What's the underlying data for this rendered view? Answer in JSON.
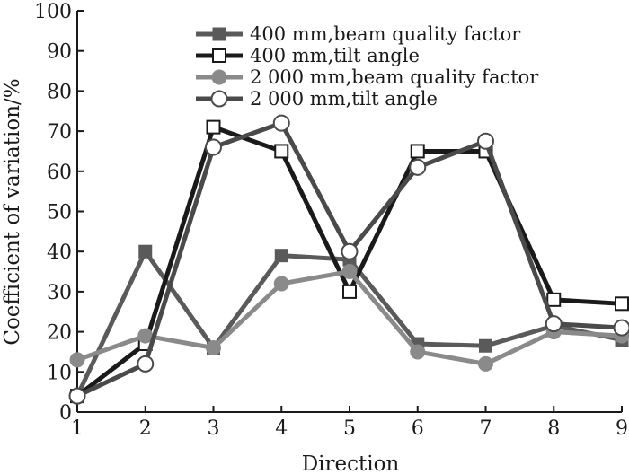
{
  "chart_data": {
    "type": "line",
    "title": "",
    "xlabel": "Direction",
    "ylabel": "Coefficient of variation/%",
    "x": [
      1,
      2,
      3,
      4,
      5,
      6,
      7,
      8,
      9
    ],
    "xlim": [
      1,
      9
    ],
    "ylim": [
      0,
      100
    ],
    "xticks": [
      1,
      2,
      3,
      4,
      5,
      6,
      7,
      8,
      9
    ],
    "yticks": [
      0,
      10,
      20,
      30,
      40,
      50,
      60,
      70,
      80,
      90,
      100
    ],
    "grid": false,
    "legend_position": "top-right",
    "series": [
      {
        "name": "400 mm,beam quality factor",
        "marker": "square-filled",
        "color": "#5a5a5a",
        "values": [
          4,
          40,
          16,
          39,
          38,
          17,
          16.5,
          21.5,
          18
        ]
      },
      {
        "name": "400 mm,tilt angle",
        "marker": "square-open",
        "color": "#1a1a1a",
        "values": [
          4,
          17,
          71,
          65,
          30,
          65,
          65,
          28,
          27
        ]
      },
      {
        "name": "2 000 mm,beam quality factor",
        "marker": "circle-filled",
        "color": "#8a8a8a",
        "values": [
          13,
          19,
          16,
          32,
          35,
          15,
          12,
          20,
          19
        ]
      },
      {
        "name": "2 000 mm,tilt angle",
        "marker": "circle-open",
        "color": "#4a4a4a",
        "values": [
          4,
          12,
          66,
          72,
          40,
          61,
          67.5,
          22,
          21
        ]
      }
    ]
  }
}
